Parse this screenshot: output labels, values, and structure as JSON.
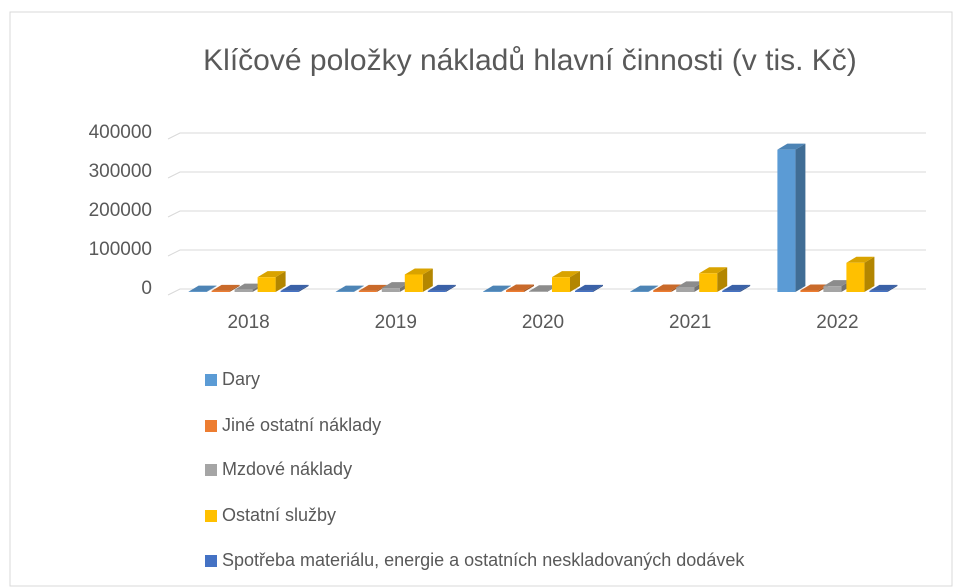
{
  "chart_data": {
    "type": "bar3d",
    "title": "Klíčové položky nákladů hlavní činnosti (v tis. Kč)",
    "categories": [
      "2018",
      "2019",
      "2020",
      "2021",
      "2022"
    ],
    "series": [
      {
        "name": "Dary",
        "color": "#5b9bd5",
        "values": [
          1000,
          1000,
          1000,
          1000,
          365000
        ]
      },
      {
        "name": "Jiné ostatní náklady",
        "color": "#ed7d31",
        "values": [
          3000,
          3000,
          4000,
          4000,
          4000
        ]
      },
      {
        "name": "Mzdové náklady",
        "color": "#a5a5a5",
        "values": [
          6000,
          10000,
          2000,
          12000,
          15000
        ]
      },
      {
        "name": "Ostatní služby",
        "color": "#ffc000",
        "values": [
          38000,
          45000,
          38000,
          48000,
          75000
        ]
      },
      {
        "name": "Spotřeba materiálu, energie a ostatních neskladovaných dodávek",
        "color": "#4472c4",
        "values": [
          3000,
          3000,
          3000,
          3000,
          3000
        ]
      }
    ],
    "ylim": [
      0,
      400000
    ],
    "yticks": [
      0,
      100000,
      200000,
      300000,
      400000
    ],
    "grid": true,
    "legend": "bottom"
  }
}
